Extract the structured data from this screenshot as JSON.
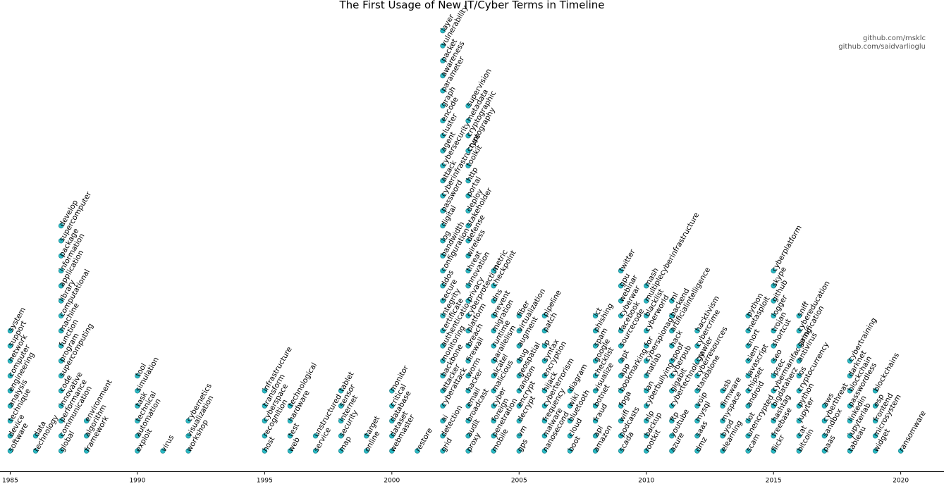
{
  "chart_data": {
    "type": "scatter",
    "title": "The First Usage of New IT/Cyber Terms in Timeline",
    "credits": [
      "github.com/msklc",
      "github.com/saidvarlioglu"
    ],
    "xlabel": "",
    "ylabel": "",
    "xlim": [
      1984.6,
      2021.7
    ],
    "xticks": [
      1985,
      1990,
      1995,
      2000,
      2005,
      2010,
      2015,
      2020
    ],
    "marker_color": "#2ab9c4",
    "years": [
      {
        "year": 1985,
        "terms": [
          "software",
          "device",
          "technique",
          "analysis",
          "engineering",
          "computer",
          "network",
          "support",
          "system"
        ]
      },
      {
        "year": 1986,
        "terms": [
          "technology",
          "data"
        ]
      },
      {
        "year": 1987,
        "terms": [
          "global",
          "communication",
          "performance",
          "innovative",
          "code",
          "supercomputing",
          "program",
          "function",
          "machine",
          "computational",
          "library",
          "application",
          "information",
          "package",
          "supercomputer",
          "develop"
        ]
      },
      {
        "year": 1988,
        "terms": [
          "framework",
          "algorithm",
          "environment"
        ]
      },
      {
        "year": 1990,
        "terms": [
          "exploit",
          "automation",
          "technical",
          "task",
          "simulation",
          "tool"
        ]
      },
      {
        "year": 1991,
        "terms": [
          "virus"
        ]
      },
      {
        "year": 1992,
        "terms": [
          "workshop",
          "visualization",
          "cybernetics"
        ]
      },
      {
        "year": 1995,
        "terms": [
          "host",
          "recognition",
          "cyberspace",
          "transform",
          "infrastructure"
        ]
      },
      {
        "year": 1996,
        "terms": [
          "web",
          "test",
          "hardware",
          "technological"
        ]
      },
      {
        "year": 1997,
        "terms": [
          "service",
          "unstructured"
        ]
      },
      {
        "year": 1998,
        "terms": [
          "map",
          "security",
          "internet",
          "sensor",
          "tablet"
        ]
      },
      {
        "year": 1999,
        "terms": [
          "online",
          "target"
        ]
      },
      {
        "year": 2000,
        "terms": [
          "webmaster",
          "dataset",
          "database",
          "critical",
          "monitor"
        ]
      },
      {
        "year": 2001,
        "terms": [
          "restore"
        ]
      },
      {
        "year": 2002,
        "terms": [
          "grid",
          "detection",
          "ai",
          "cyberattack",
          "attacker",
          "backbone",
          "monitoring",
          "authentication",
          "certificate",
          "integrity",
          "secure",
          "ddos",
          "configuration",
          "bandwidth",
          "log",
          "digital",
          "password",
          "cyberinfrastructure",
          "attack",
          "cybersecurity",
          "agent",
          "cluster",
          "encode",
          "graph",
          "parameter",
          "awareness",
          "packet",
          "vulnerability",
          "layer"
        ]
      },
      {
        "year": 2003,
        "terms": [
          "proxy",
          "audit",
          "broadcast",
          "email",
          "hacker",
          "worm",
          "firewall",
          "breach",
          "platform",
          "cyberprotection",
          "privacy",
          "innovation",
          "threat",
          "wireless",
          "defense",
          "stakeholder",
          "deploy",
          "portal",
          "http",
          "toolkit",
          "cryptography",
          "cryptographic",
          "metadata",
          "supervision"
        ]
      },
      {
        "year": 2004,
        "terms": [
          "mobile",
          "penetration",
          "foreign",
          "cyber",
          "malicious",
          "alcatel",
          "parallelism",
          "runtime",
          "migration",
          "prevent",
          "dns",
          "checkpoint",
          "metric"
        ]
      },
      {
        "year": 2005,
        "terms": [
          "gps",
          "vm",
          "decrypt",
          "encrypt",
          "random",
          "geospatial",
          "bug",
          "augment",
          "virtualization",
          "fiber"
        ]
      },
      {
        "year": 2006,
        "terms": [
          "nanosecond",
          "malware",
          "frequency",
          "cyberterrorism",
          "hijack",
          "encryption",
          "syntax",
          "ip",
          "patch",
          "pipeline"
        ]
      },
      {
        "year": 2007,
        "terms": [
          "boot",
          "cloud",
          "bluetooth",
          "wiki",
          "diagram"
        ]
      },
      {
        "year": 2008,
        "terms": [
          "amazon",
          "api",
          "fraud",
          "botnet",
          "visualize",
          "checklist",
          "google",
          "spam",
          "phishing",
          "ict"
        ]
      },
      {
        "year": 2009,
        "terms": [
          "scada",
          "podcasts",
          "wifi",
          "fpga",
          "bookmarking",
          "app",
          "apt",
          "sourcecode",
          "facebook",
          "cyberwar",
          "webinar",
          "gpu",
          "twitter"
        ]
      },
      {
        "year": 2010,
        "terms": [
          "rootkit",
          "backup",
          "nlp",
          "cyberbullying",
          "lan",
          "matlab",
          "cyberspionage",
          "for",
          "cyberworld",
          "blacklist",
          "multiplecyberinfrastructure",
          "mash"
        ]
      },
      {
        "year": 2011,
        "terms": [
          "azure",
          "youtube",
          "ftp",
          "cybertechnology",
          "gigabit",
          "cyberpub",
          "spoof",
          "hack",
          "artificialintelligence",
          "backend",
          "ml"
        ]
      },
      {
        "year": 2012,
        "terms": [
          "dmz",
          "saas",
          "mysql",
          "voip",
          "standalone",
          "cyberresources",
          "crawler",
          "cybercrime",
          "hacktivism"
        ]
      },
      {
        "year": 2013,
        "terms": [
          "elearning",
          "byod",
          "myspace",
          "firmware",
          "usb"
        ]
      },
      {
        "year": 2014,
        "terms": [
          "scam",
          "unencrypted",
          "iot",
          "android",
          "chipset",
          "javascript",
          "siem",
          "snort",
          "metasploit",
          "python"
        ]
      },
      {
        "year": 2015,
        "terms": [
          "flickr",
          "freebase",
          "hashtag",
          "bigdataherz",
          "cybermanifacturing",
          "ipsec",
          "seo",
          "shortcut",
          "trojan",
          "logger",
          "github",
          "skype",
          "cyberplatform"
        ]
      },
      {
        "year": 2016,
        "terms": [
          "bitcoin",
          "cat",
          "jupyter",
          "python",
          "cryptocurrency",
          "ios",
          "antivirus",
          "gamification",
          "cybereducation",
          "sniff"
        ]
      },
      {
        "year": 2017,
        "terms": [
          "paas",
          "sandbox",
          "cyberthreat",
          "aws"
        ]
      },
      {
        "year": 2018,
        "terms": [
          "tableau",
          "jupyterlab",
          "linkedin",
          "passwordless",
          "blockchain",
          "darknet",
          "cybertraining"
        ]
      },
      {
        "year": 2019,
        "terms": [
          "widget",
          "microsystem",
          "frontend",
          "esp",
          "blockchains"
        ]
      },
      {
        "year": 2020,
        "terms": [
          "ransomware"
        ]
      }
    ]
  }
}
